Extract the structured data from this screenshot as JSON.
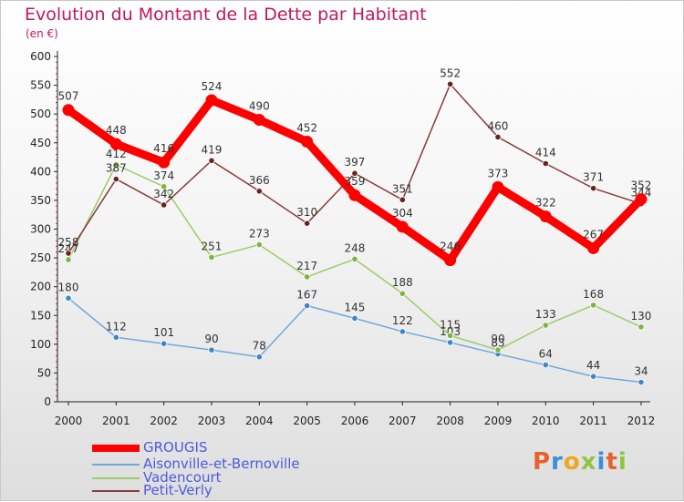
{
  "title": "Evolution du Montant de la Dette par Habitant",
  "unit": "(en €)",
  "logo": {
    "letters": [
      "P",
      "r",
      "o",
      "x",
      "i",
      "t",
      "i"
    ],
    "colors": [
      "#e8602c",
      "#3b8fd9",
      "#f2a51a",
      "#8dc63f",
      "#3b8fd9",
      "#e8602c",
      "#8dc63f"
    ]
  },
  "chart_data": {
    "type": "line",
    "title": "Evolution du Montant de la Dette par Habitant",
    "ylabel": "(en €)",
    "xlabel": "",
    "x": [
      "2000",
      "2001",
      "2002",
      "2003",
      "2004",
      "2005",
      "2006",
      "2007",
      "2008",
      "2009",
      "2010",
      "2011",
      "2012"
    ],
    "ylim": [
      0,
      600
    ],
    "yticks": [
      0,
      50,
      100,
      150,
      200,
      250,
      300,
      350,
      400,
      450,
      500,
      550,
      600
    ],
    "grid": false,
    "legend": "bottom-left",
    "series": [
      {
        "name": "GROUGIS",
        "values": [
          507,
          448,
          416,
          524,
          490,
          452,
          359,
          304,
          246,
          373,
          322,
          267,
          352
        ],
        "labels": [
          "507",
          "448",
          "416",
          "524",
          "490",
          "452",
          "359",
          "304",
          "246",
          "373",
          "322",
          "267",
          "352"
        ],
        "color": "#ff0000",
        "marker_color": "#ff0000",
        "emphasis": true
      },
      {
        "name": "Aisonville-et-Bernoville",
        "values": [
          180,
          112,
          101,
          90,
          78,
          167,
          145,
          122,
          103,
          83,
          64,
          44,
          34
        ],
        "labels": [
          "180",
          "112",
          "101",
          "90",
          "78",
          "167",
          "145",
          "122",
          "103",
          "83",
          "64",
          "44",
          "34"
        ],
        "color": "#6fa8dc",
        "marker_color": "#3d85c6",
        "emphasis": false
      },
      {
        "name": "Vadencourt",
        "values": [
          247,
          412,
          374,
          251,
          273,
          217,
          248,
          188,
          115,
          90,
          133,
          168,
          130
        ],
        "labels": [
          "247",
          "412",
          "374",
          "251",
          "273",
          "217",
          "248",
          "188",
          "115",
          "90",
          "133",
          "168",
          "130"
        ],
        "color": "#9ccc65",
        "marker_color": "#7cb342",
        "emphasis": false
      },
      {
        "name": "Petit-Verly",
        "values": [
          258,
          387,
          342,
          419,
          366,
          310,
          397,
          351,
          552,
          460,
          414,
          371,
          344
        ],
        "labels": [
          "258",
          "387",
          "342",
          "419",
          "366",
          "310",
          "397",
          "351",
          "552",
          "460",
          "414",
          "371",
          "344"
        ],
        "color": "#8b3a3a",
        "marker_color": "#6d2020",
        "emphasis": false
      }
    ]
  }
}
